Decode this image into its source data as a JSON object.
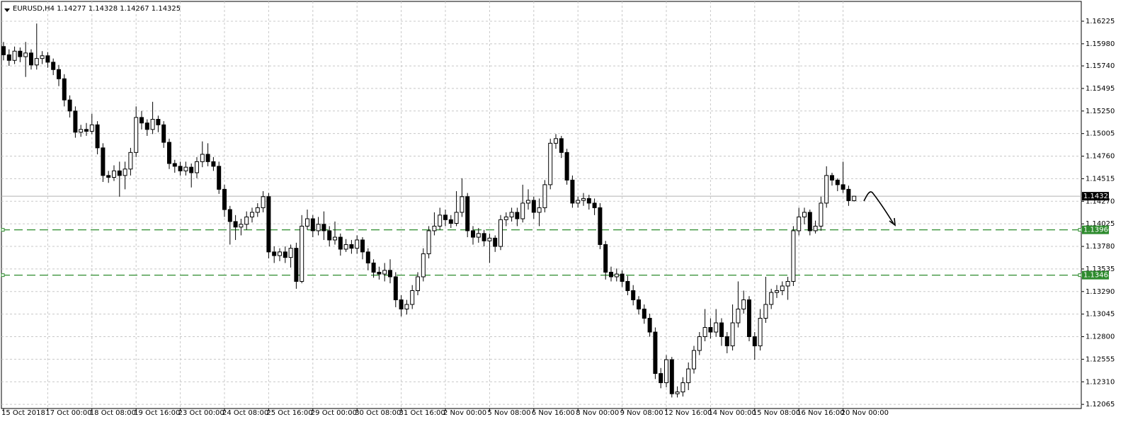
{
  "chart_data": {
    "type": "candlestick",
    "title": "EURUSD,H4  1.14277 1.14328 1.14267 1.14325",
    "ylim": [
      1.1202,
      1.1644
    ],
    "yticks": [
      {
        "value": 1.16225,
        "label": "1.16225"
      },
      {
        "value": 1.1598,
        "label": "1.15980"
      },
      {
        "value": 1.1574,
        "label": "1.15740"
      },
      {
        "value": 1.15495,
        "label": "1.15495"
      },
      {
        "value": 1.1525,
        "label": "1.15250"
      },
      {
        "value": 1.15005,
        "label": "1.15005"
      },
      {
        "value": 1.1476,
        "label": "1.14760"
      },
      {
        "value": 1.14515,
        "label": "1.14515"
      },
      {
        "value": 1.1427,
        "label": "1.14270"
      },
      {
        "value": 1.14025,
        "label": "1.14025"
      },
      {
        "value": 1.1378,
        "label": "1.13780"
      },
      {
        "value": 1.13535,
        "label": "1.13535"
      },
      {
        "value": 1.1329,
        "label": "1.13290"
      },
      {
        "value": 1.13045,
        "label": "1.13045"
      },
      {
        "value": 1.128,
        "label": "1.12800"
      },
      {
        "value": 1.12555,
        "label": "1.12555"
      },
      {
        "value": 1.1231,
        "label": "1.12310"
      },
      {
        "value": 1.12065,
        "label": "1.12065"
      }
    ],
    "xtick_labels": [
      "15 Oct 2018",
      "17 Oct 00:00",
      "18 Oct 08:00",
      "19 Oct 16:00",
      "23 Oct 00:00",
      "24 Oct 08:00",
      "25 Oct 16:00",
      "29 Oct 00:00",
      "30 Oct 08:00",
      "31 Oct 16:00",
      "2 Nov 00:00",
      "5 Nov 08:00",
      "6 Nov 16:00",
      "8 Nov 00:00",
      "9 Nov 08:00",
      "12 Nov 16:00",
      "14 Nov 00:00",
      "15 Nov 08:00",
      "16 Nov 16:00",
      "20 Nov 00:00"
    ],
    "grid": true,
    "levels": [
      {
        "value": 1.1396,
        "label": "1.13960",
        "color": "#2e8b2e"
      },
      {
        "value": 1.13468,
        "label": "1.13468",
        "color": "#2e8b2e"
      }
    ],
    "current_price": {
      "value": 1.14325,
      "label": "1.14325"
    },
    "open": [
      1.1595,
      1.1586,
      1.158,
      1.159,
      1.1584,
      1.1588,
      1.1575,
      1.1582,
      1.1585,
      1.1578,
      1.157,
      1.156,
      1.1537,
      1.1525,
      1.1502,
      1.1505,
      1.1503,
      1.151,
      1.1485,
      1.1455,
      1.1453,
      1.146,
      1.1455,
      1.1462,
      1.148,
      1.1518,
      1.1512,
      1.1505,
      1.1516,
      1.151,
      1.1491,
      1.1468,
      1.1465,
      1.146,
      1.1464,
      1.1458,
      1.147,
      1.1478,
      1.147,
      1.1465,
      1.144,
      1.1418,
      1.1405,
      1.1399,
      1.1402,
      1.141,
      1.1415,
      1.142,
      1.1432,
      1.1372,
      1.1368,
      1.1372,
      1.1366,
      1.1376,
      1.134,
      1.14,
      1.1408,
      1.1395,
      1.1402,
      1.1395,
      1.1385,
      1.1388,
      1.1375,
      1.138,
      1.1376,
      1.1385,
      1.1372,
      1.136,
      1.135,
      1.1348,
      1.1352,
      1.1345,
      1.132,
      1.131,
      1.1315,
      1.133,
      1.1345,
      1.137,
      1.1395,
      1.14,
      1.1412,
      1.1407,
      1.1403,
      1.1415,
      1.1432,
      1.1395,
      1.1388,
      1.1392,
      1.1384,
      1.1387,
      1.1378,
      1.1407,
      1.141,
      1.1415,
      1.1408,
      1.1425,
      1.1428,
      1.1415,
      1.142,
      1.1445,
      1.149,
      1.1495,
      1.148,
      1.145,
      1.1425,
      1.1428,
      1.143,
      1.1425,
      1.142,
      1.138,
      1.135,
      1.1345,
      1.1348,
      1.134,
      1.133,
      1.132,
      1.131,
      1.13,
      1.1285,
      1.124,
      1.123,
      1.1255,
      1.1218,
      1.122,
      1.123,
      1.1245,
      1.1265,
      1.128,
      1.129,
      1.1285,
      1.1295,
      1.128,
      1.127,
      1.1295,
      1.131,
      1.132,
      1.128,
      1.127,
      1.13,
      1.1315,
      1.1328,
      1.133,
      1.1335,
      1.134,
      1.1395,
      1.141,
      1.1415,
      1.1395,
      1.14,
      1.1425,
      1.1455,
      1.145,
      1.1445,
      1.144,
      1.14277
    ],
    "high": [
      1.16,
      1.1592,
      1.1595,
      1.1594,
      1.16,
      1.1592,
      1.162,
      1.159,
      1.1589,
      1.1582,
      1.1575,
      1.1565,
      1.1542,
      1.153,
      1.151,
      1.1512,
      1.1522,
      1.1514,
      1.149,
      1.146,
      1.1466,
      1.147,
      1.147,
      1.1485,
      1.153,
      1.1525,
      1.1516,
      1.1535,
      1.152,
      1.1514,
      1.1495,
      1.1472,
      1.147,
      1.147,
      1.1468,
      1.1475,
      1.1492,
      1.149,
      1.1475,
      1.147,
      1.1445,
      1.1422,
      1.1412,
      1.1408,
      1.1416,
      1.142,
      1.1425,
      1.1438,
      1.1436,
      1.1378,
      1.1376,
      1.1378,
      1.138,
      1.1382,
      1.1412,
      1.1418,
      1.1412,
      1.141,
      1.1416,
      1.14,
      1.1405,
      1.1392,
      1.1386,
      1.1385,
      1.139,
      1.1388,
      1.1376,
      1.1364,
      1.1356,
      1.136,
      1.1364,
      1.135,
      1.1325,
      1.132,
      1.1336,
      1.135,
      1.1376,
      1.14,
      1.1415,
      1.142,
      1.1418,
      1.1412,
      1.1438,
      1.1452,
      1.1436,
      1.14,
      1.1398,
      1.1396,
      1.1392,
      1.139,
      1.1412,
      1.1415,
      1.142,
      1.142,
      1.1445,
      1.144,
      1.1432,
      1.143,
      1.145,
      1.1495,
      1.15,
      1.1498,
      1.1484,
      1.1455,
      1.1432,
      1.1436,
      1.1434,
      1.143,
      1.1425,
      1.1384,
      1.1356,
      1.1354,
      1.1352,
      1.1346,
      1.1336,
      1.1324,
      1.1315,
      1.1305,
      1.129,
      1.1246,
      1.126,
      1.1258,
      1.1226,
      1.1236,
      1.1252,
      1.127,
      1.1285,
      1.131,
      1.13,
      1.131,
      1.13,
      1.1285,
      1.1315,
      1.134,
      1.133,
      1.1324,
      1.1285,
      1.131,
      1.1345,
      1.1332,
      1.1336,
      1.134,
      1.1345,
      1.14,
      1.142,
      1.142,
      1.1418,
      1.1406,
      1.1432,
      1.1465,
      1.1458,
      1.1452,
      1.147,
      1.1444,
      1.14328
    ],
    "low": [
      1.158,
      1.1574,
      1.1576,
      1.1578,
      1.1562,
      1.157,
      1.157,
      1.1576,
      1.1572,
      1.1564,
      1.1552,
      1.153,
      1.1518,
      1.1496,
      1.1497,
      1.1498,
      1.15,
      1.1478,
      1.1448,
      1.1447,
      1.1449,
      1.1432,
      1.144,
      1.1455,
      1.1475,
      1.1505,
      1.1498,
      1.15,
      1.1502,
      1.1485,
      1.1462,
      1.1458,
      1.1455,
      1.1455,
      1.1442,
      1.1452,
      1.1464,
      1.1465,
      1.146,
      1.1435,
      1.141,
      1.138,
      1.1385,
      1.139,
      1.1396,
      1.1404,
      1.141,
      1.1415,
      1.1365,
      1.136,
      1.1362,
      1.136,
      1.1355,
      1.1332,
      1.1338,
      1.1396,
      1.1388,
      1.139,
      1.1385,
      1.1378,
      1.138,
      1.1368,
      1.1372,
      1.137,
      1.137,
      1.1364,
      1.1352,
      1.1344,
      1.1342,
      1.134,
      1.1338,
      1.1312,
      1.1302,
      1.1304,
      1.131,
      1.1325,
      1.134,
      1.1365,
      1.139,
      1.1396,
      1.14,
      1.1398,
      1.14,
      1.141,
      1.1388,
      1.138,
      1.1382,
      1.1378,
      1.136,
      1.1372,
      1.1374,
      1.14,
      1.1405,
      1.14,
      1.1404,
      1.1418,
      1.1408,
      1.14,
      1.1415,
      1.144,
      1.1484,
      1.1474,
      1.1445,
      1.142,
      1.142,
      1.1422,
      1.1418,
      1.1412,
      1.1375,
      1.1342,
      1.134,
      1.134,
      1.1334,
      1.1325,
      1.1314,
      1.1304,
      1.1294,
      1.128,
      1.1234,
      1.1224,
      1.1225,
      1.1214,
      1.1214,
      1.1215,
      1.1222,
      1.124,
      1.126,
      1.1275,
      1.1278,
      1.128,
      1.127,
      1.1262,
      1.1265,
      1.129,
      1.1305,
      1.1275,
      1.1255,
      1.1265,
      1.1295,
      1.131,
      1.1322,
      1.1325,
      1.132,
      1.1335,
      1.139,
      1.1402,
      1.139,
      1.1392,
      1.1395,
      1.142,
      1.1444,
      1.1438,
      1.1436,
      1.1422,
      1.14267
    ],
    "close": [
      1.1586,
      1.158,
      1.159,
      1.1584,
      1.1588,
      1.1575,
      1.1582,
      1.1585,
      1.1578,
      1.157,
      1.156,
      1.1537,
      1.1525,
      1.1502,
      1.1505,
      1.1503,
      1.151,
      1.1485,
      1.1455,
      1.1453,
      1.146,
      1.1455,
      1.1462,
      1.148,
      1.1518,
      1.1512,
      1.1505,
      1.1516,
      1.151,
      1.1491,
      1.1468,
      1.1465,
      1.146,
      1.1464,
      1.1458,
      1.147,
      1.1478,
      1.147,
      1.1465,
      1.144,
      1.1418,
      1.1405,
      1.1399,
      1.1402,
      1.141,
      1.1415,
      1.142,
      1.1432,
      1.1372,
      1.1368,
      1.1372,
      1.1366,
      1.1376,
      1.134,
      1.14,
      1.1408,
      1.1395,
      1.1402,
      1.1395,
      1.1385,
      1.1388,
      1.1375,
      1.138,
      1.1376,
      1.1385,
      1.1372,
      1.136,
      1.135,
      1.1348,
      1.1352,
      1.1345,
      1.132,
      1.131,
      1.1315,
      1.133,
      1.1345,
      1.137,
      1.1395,
      1.14,
      1.1412,
      1.1407,
      1.1403,
      1.1415,
      1.1432,
      1.1395,
      1.1388,
      1.1392,
      1.1384,
      1.1387,
      1.1378,
      1.1407,
      1.141,
      1.1415,
      1.1408,
      1.1425,
      1.1428,
      1.1415,
      1.142,
      1.1445,
      1.149,
      1.1495,
      1.148,
      1.145,
      1.1425,
      1.1428,
      1.143,
      1.1425,
      1.142,
      1.138,
      1.135,
      1.1345,
      1.1348,
      1.134,
      1.133,
      1.132,
      1.131,
      1.13,
      1.1285,
      1.124,
      1.123,
      1.1255,
      1.1218,
      1.122,
      1.123,
      1.1245,
      1.1265,
      1.128,
      1.129,
      1.1285,
      1.1295,
      1.128,
      1.127,
      1.1295,
      1.131,
      1.132,
      1.128,
      1.127,
      1.13,
      1.1315,
      1.1328,
      1.133,
      1.1335,
      1.134,
      1.1395,
      1.141,
      1.1415,
      1.1395,
      1.14,
      1.1425,
      1.1455,
      1.145,
      1.1445,
      1.144,
      1.14277,
      1.14325
    ]
  }
}
